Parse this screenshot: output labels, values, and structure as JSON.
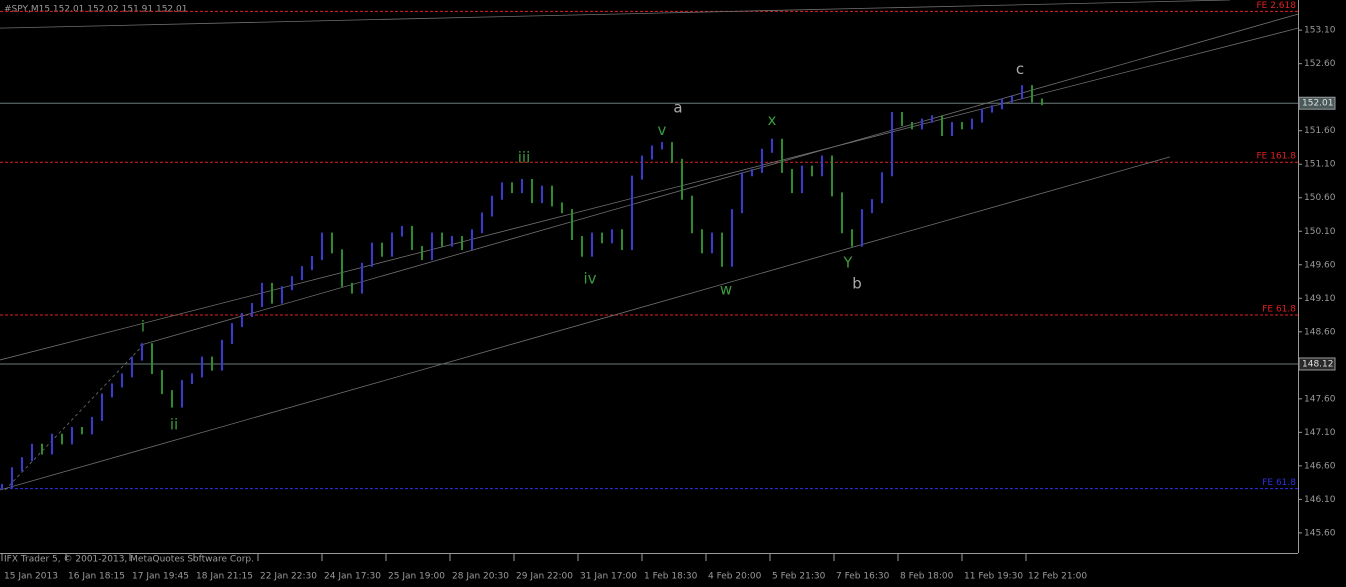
{
  "chart_data": {
    "type": "price_bars",
    "title": "#SPY,M15  152.01 152.02 151.91 152.01",
    "footer": "IFX Trader 5, © 2001-2013, MetaQuotes Software Corp.",
    "up_color": "#3a3ad0",
    "down_color": "#2e8b2e",
    "values": [
      146.3,
      146.55,
      146.7,
      146.9,
      146.8,
      147.05,
      146.95,
      147.15,
      147.1,
      147.3,
      147.65,
      147.8,
      147.95,
      148.2,
      148.4,
      148.0,
      147.7,
      147.5,
      147.85,
      147.95,
      148.2,
      148.05,
      148.45,
      148.7,
      148.85,
      149.0,
      149.3,
      149.05,
      149.25,
      149.4,
      149.55,
      149.7,
      150.05,
      149.8,
      149.3,
      149.2,
      149.6,
      149.9,
      149.75,
      150.05,
      150.15,
      149.85,
      149.7,
      150.05,
      149.9,
      150.0,
      149.85,
      150.1,
      150.35,
      150.6,
      150.8,
      150.7,
      150.85,
      150.55,
      150.75,
      150.5,
      150.4,
      150.0,
      149.75,
      150.05,
      149.95,
      150.1,
      149.85,
      150.9,
      151.2,
      151.35,
      151.4,
      151.15,
      150.6,
      150.1,
      149.8,
      150.05,
      149.6,
      150.4,
      150.95,
      151.0,
      151.3,
      151.45,
      151.0,
      150.7,
      151.05,
      150.95,
      151.2,
      150.65,
      150.1,
      149.9,
      150.4,
      150.55,
      150.95,
      151.85,
      151.7,
      151.65,
      151.75,
      151.8,
      151.55,
      151.7,
      151.65,
      151.75,
      151.9,
      151.95,
      152.05,
      152.1,
      152.25,
      152.05,
      152.01
    ],
    "xlim": [
      -0.2,
      129.6
    ],
    "xticks": [
      {
        "value": 0,
        "label": "15 Jan 2013"
      },
      {
        "value": 6.4,
        "label": "16 Jan 18:15"
      },
      {
        "value": 12.8,
        "label": "17 Jan 19:45"
      },
      {
        "value": 19.2,
        "label": "18 Jan 21:15"
      },
      {
        "value": 25.6,
        "label": "22 Jan 22:30"
      },
      {
        "value": 32,
        "label": "24 Jan 17:30"
      },
      {
        "value": 38.4,
        "label": "25 Jan 19:00"
      },
      {
        "value": 44.8,
        "label": "28 Jan 20:30"
      },
      {
        "value": 51.2,
        "label": "29 Jan 22:00"
      },
      {
        "value": 57.6,
        "label": "31 Jan 17:00"
      },
      {
        "value": 64,
        "label": "1 Feb 18:30"
      },
      {
        "value": 70.4,
        "label": "4 Feb 20:00"
      },
      {
        "value": 76.8,
        "label": "5 Feb 21:30"
      },
      {
        "value": 83.2,
        "label": "7 Feb 16:30"
      },
      {
        "value": 89.6,
        "label": "8 Feb 18:00"
      },
      {
        "value": 96,
        "label": "11 Feb 19:30"
      },
      {
        "value": 102.4,
        "label": "12 Feb 21:00"
      }
    ],
    "ylim": [
      145.3,
      153.55
    ],
    "yticks": [
      {
        "value": 153.1,
        "label": "153.10"
      },
      {
        "value": 152.6,
        "label": "152.60"
      },
      {
        "value": 151.6,
        "label": "151.60"
      },
      {
        "value": 151.1,
        "label": "151.10"
      },
      {
        "value": 150.6,
        "label": "150.60"
      },
      {
        "value": 150.1,
        "label": "150.10"
      },
      {
        "value": 149.6,
        "label": "149.60"
      },
      {
        "value": 149.1,
        "label": "149.10"
      },
      {
        "value": 148.6,
        "label": "148.60"
      },
      {
        "value": 147.6,
        "label": "147.60"
      },
      {
        "value": 147.1,
        "label": "147.10"
      },
      {
        "value": 146.6,
        "label": "146.60"
      },
      {
        "value": 146.1,
        "label": "146.10"
      },
      {
        "value": 145.6,
        "label": "145.60"
      }
    ],
    "levels": [
      {
        "label": "FE 2.618",
        "value": 153.38,
        "color": "#e02020"
      },
      {
        "label": "FE 161.8",
        "value": 151.13,
        "color": "#e02020"
      },
      {
        "label": "FE 61.8",
        "value": 148.85,
        "color": "#e02020"
      },
      {
        "label": "FE 61.8",
        "value": 146.26,
        "color": "#3030e0"
      }
    ],
    "price_lines": [
      152.01,
      148.12
    ],
    "trendlines": [
      {
        "x": [
          -0.2,
          116.8
        ],
        "y": [
          146.24,
          151.21
        ],
        "style": "solid"
      },
      {
        "x": [
          -0.2,
          129.6
        ],
        "y": [
          148.18,
          153.13
        ],
        "style": "solid"
      },
      {
        "x": [
          13.8,
          129.6
        ],
        "y": [
          148.4,
          153.34
        ],
        "style": "solid"
      },
      {
        "x": [
          -0.2,
          122.8
        ],
        "y": [
          153.13,
          153.55
        ],
        "style": "solid"
      },
      {
        "x": [
          0.3,
          14.1
        ],
        "y": [
          146.24,
          148.4
        ],
        "style": "dashed"
      }
    ],
    "annotations": [
      {
        "text": "i",
        "x": 14.1,
        "y": 148.67,
        "color": "#3c9a3c"
      },
      {
        "text": "ii",
        "x": 17.2,
        "y": 147.21,
        "color": "#3c9a3c"
      },
      {
        "text": "iii",
        "x": 52.2,
        "y": 151.19,
        "color": "#3c9a3c"
      },
      {
        "text": "iv",
        "x": 58.8,
        "y": 149.39,
        "color": "#3c9a3c"
      },
      {
        "text": "v",
        "x": 66.0,
        "y": 151.6,
        "color": "#3c9a3c"
      },
      {
        "text": "a",
        "x": 67.6,
        "y": 151.94,
        "color": "#aaaaaa"
      },
      {
        "text": "w",
        "x": 72.4,
        "y": 149.22,
        "color": "#3c9a3c"
      },
      {
        "text": "x",
        "x": 77.0,
        "y": 151.75,
        "color": "#3c9a3c"
      },
      {
        "text": "Y",
        "x": 84.6,
        "y": 149.63,
        "color": "#3c9a3c"
      },
      {
        "text": "b",
        "x": 85.5,
        "y": 149.31,
        "color": "#aaaaaa"
      },
      {
        "text": "c",
        "x": 101.8,
        "y": 152.51,
        "color": "#aaaaaa"
      }
    ]
  }
}
